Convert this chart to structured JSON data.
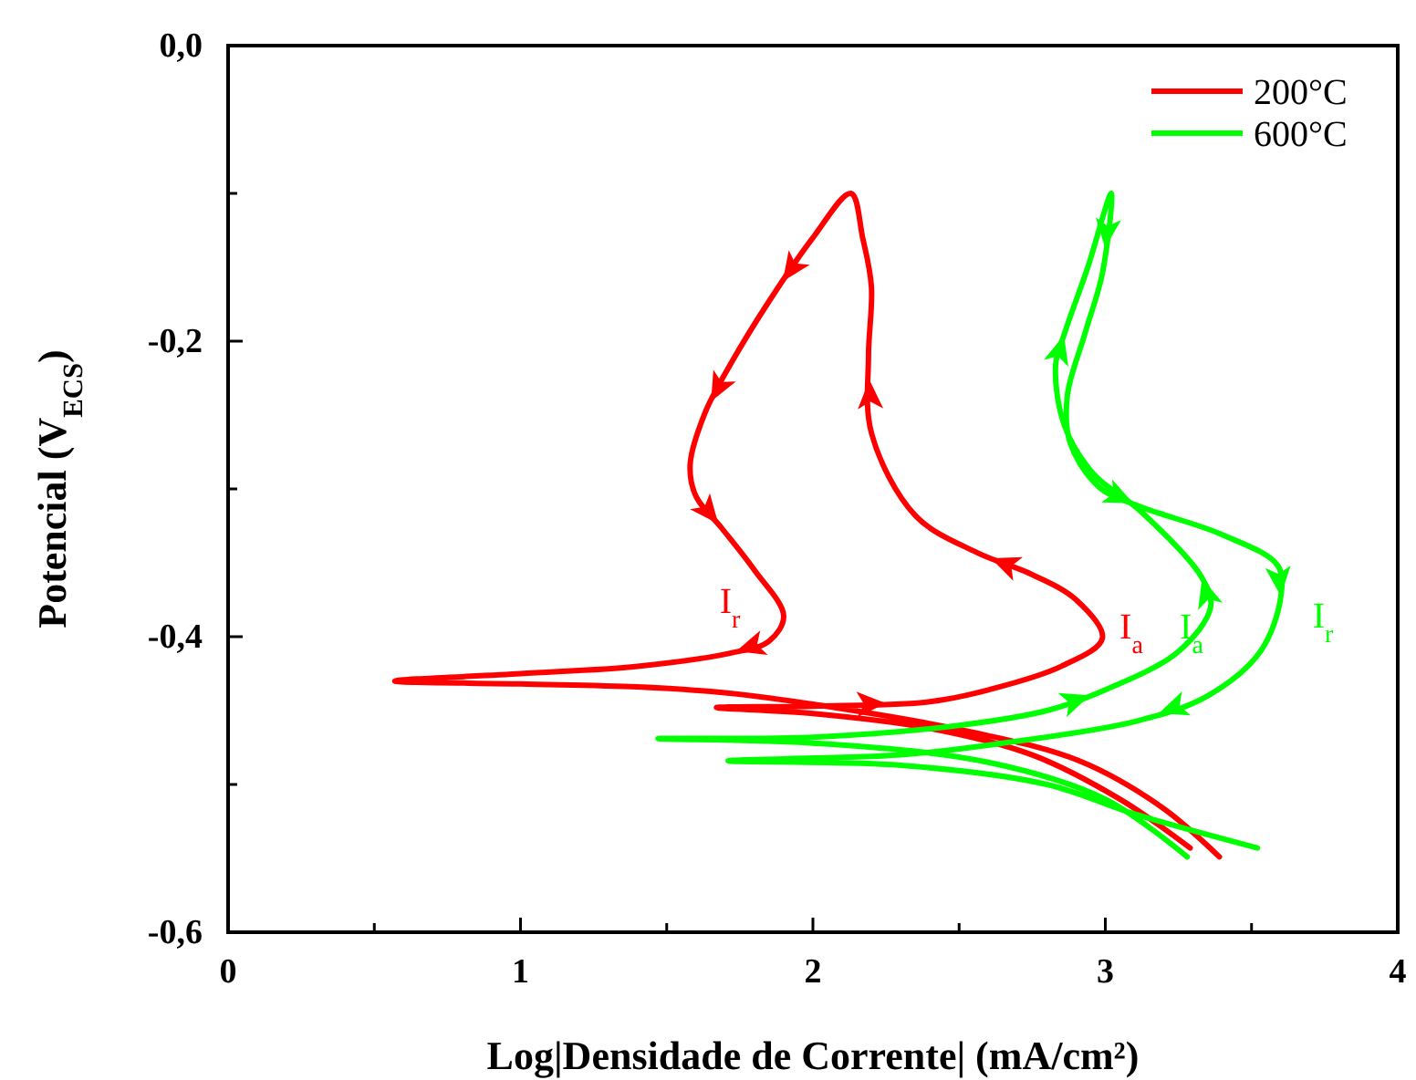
{
  "chart_data": {
    "type": "line",
    "xlabel": "Log|Densidade de Corrente| (mA/cm²)",
    "ylabel": "Potencial (V$_{ECS}$)",
    "xlim": [
      0,
      4
    ],
    "ylim": [
      -0.6,
      0
    ],
    "xticks": [
      0,
      {
        "value": 0.5,
        "label": null
      },
      1,
      {
        "value": 1.5,
        "label": null
      },
      2,
      {
        "value": 2.5,
        "label": null
      },
      3,
      {
        "value": 3.5,
        "label": null
      },
      4
    ],
    "yticks": [
      {
        "value": -0.6,
        "label": "-0,6"
      },
      {
        "value": -0.5,
        "label": null
      },
      {
        "value": -0.4,
        "label": "-0,4"
      },
      {
        "value": -0.3,
        "label": null
      },
      {
        "value": -0.2,
        "label": "-0,2"
      },
      {
        "value": -0.1,
        "label": null
      },
      {
        "value": 0,
        "label": "0,0"
      }
    ],
    "series": [
      {
        "name": "200°C",
        "color": "#ff0000",
        "x": [
          3.29,
          3.05,
          2.75,
          2.4,
          2.0,
          1.67,
          2.0,
          2.4,
          2.6,
          2.85,
          2.99,
          2.9,
          2.75,
          2.56,
          2.35,
          2.2,
          2.19,
          2.2,
          2.17,
          2.13,
          2.0,
          1.85,
          1.72,
          1.63,
          1.58,
          1.6,
          1.69,
          1.8,
          1.9,
          1.85,
          1.72,
          1.4,
          1.0,
          0.57,
          1.0,
          1.4,
          1.7,
          2.01,
          2.53,
          2.91,
          3.19,
          3.39
        ],
        "values": [
          -0.543,
          -0.51,
          -0.48,
          -0.462,
          -0.452,
          -0.448,
          -0.447,
          -0.444,
          -0.436,
          -0.42,
          -0.401,
          -0.375,
          -0.358,
          -0.343,
          -0.318,
          -0.262,
          -0.21,
          -0.163,
          -0.13,
          -0.1,
          -0.13,
          -0.173,
          -0.215,
          -0.249,
          -0.284,
          -0.305,
          -0.327,
          -0.355,
          -0.386,
          -0.403,
          -0.411,
          -0.42,
          -0.425,
          -0.43,
          -0.432,
          -0.434,
          -0.438,
          -0.446,
          -0.464,
          -0.484,
          -0.515,
          -0.549
        ]
      },
      {
        "name": "600°C",
        "color": "#00ff00",
        "x": [
          3.28,
          3.0,
          2.6,
          2.0,
          1.47,
          2.0,
          2.5,
          2.8,
          3.0,
          3.25,
          3.36,
          3.33,
          3.12,
          2.96,
          2.86,
          2.83,
          2.86,
          2.94,
          3.02,
          2.99,
          2.93,
          2.87,
          2.88,
          2.98,
          3.12,
          3.4,
          3.59,
          3.6,
          3.53,
          3.35,
          3.11,
          2.65,
          2.3,
          1.71,
          2.3,
          2.8,
          3.1,
          3.52
        ],
        "values": [
          -0.549,
          -0.51,
          -0.485,
          -0.472,
          -0.469,
          -0.468,
          -0.46,
          -0.45,
          -0.436,
          -0.41,
          -0.38,
          -0.36,
          -0.315,
          -0.29,
          -0.257,
          -0.216,
          -0.195,
          -0.15,
          -0.1,
          -0.154,
          -0.195,
          -0.237,
          -0.269,
          -0.299,
          -0.312,
          -0.331,
          -0.352,
          -0.373,
          -0.41,
          -0.44,
          -0.457,
          -0.472,
          -0.48,
          -0.484,
          -0.487,
          -0.5,
          -0.52,
          -0.543
        ]
      }
    ],
    "annotations": [
      "I$_{r}$",
      "I$_{a}$",
      "I$_{a}$",
      "I$_{r}$"
    ],
    "legend": "top right",
    "grid": false,
    "marker": "none",
    "line_style": "solid"
  }
}
